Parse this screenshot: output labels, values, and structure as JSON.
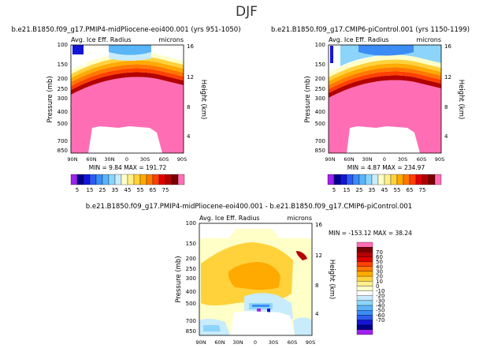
{
  "page_title": "DJF",
  "colors": {
    "pink_fill": "#ff6eb4",
    "scale_abs": [
      "#a020f0",
      "#00008b",
      "#1515d8",
      "#2a5cf0",
      "#3c8cf5",
      "#5ab4f8",
      "#8cd4fa",
      "#c8ecfc",
      "#ffffc8",
      "#fff08c",
      "#ffd23c",
      "#ffaa00",
      "#ff7800",
      "#ff4000",
      "#e00000",
      "#b40000",
      "#780000",
      "#ff6eb4"
    ],
    "scale_diff": [
      "#a020f0",
      "#00008b",
      "#1515d8",
      "#2a5cf0",
      "#3c8cf5",
      "#5ab4f8",
      "#8cd4fa",
      "#c8ecfc",
      "#ffffff",
      "#ffffc8",
      "#fff08c",
      "#ffd23c",
      "#ffaa00",
      "#ff7800",
      "#ff4000",
      "#e00000",
      "#b40000",
      "#780000",
      "#ff6eb4"
    ]
  },
  "chart_data": [
    {
      "type": "heatmap",
      "id": "mp",
      "title": "b.e21.B1850.f09_g17.PMIP4-midPliocene-eoi400.001 (yrs 951-1050)",
      "subtitle_left": "Avg. Ice Eff. Radius",
      "subtitle_right": "microns",
      "ylabel": "Pressure (mb)",
      "y2label": "Height (km)",
      "x_ticks": [
        "90N",
        "60N",
        "30N",
        "0",
        "30S",
        "60S",
        "90S"
      ],
      "y_ticks": [
        "100",
        "150",
        "200",
        "250",
        "300",
        "400",
        "500",
        "700",
        "850"
      ],
      "y2_ticks": [
        "16",
        "12",
        "8",
        "4"
      ],
      "stats_label": "MIN = 9.84 MAX = 191.72",
      "min": 9.84,
      "max": 191.72,
      "colorbar_labels": [
        "5",
        "15",
        "25",
        "35",
        "45",
        "55",
        "65",
        "75"
      ]
    },
    {
      "type": "heatmap",
      "id": "pi",
      "title": "b.e21.B1850.f09_g17.CMIP6-piControl.001 (yrs 1150-1199)",
      "subtitle_left": "Avg. Ice Eff. Radius",
      "subtitle_right": "microns",
      "ylabel": "Pressure (mb)",
      "y2label": "Height (km)",
      "x_ticks": [
        "90N",
        "60N",
        "30N",
        "0",
        "30S",
        "60S",
        "90S"
      ],
      "y_ticks": [
        "100",
        "150",
        "200",
        "250",
        "300",
        "400",
        "500",
        "700",
        "850"
      ],
      "y2_ticks": [
        "16",
        "12",
        "8",
        "4"
      ],
      "stats_label": "MIN = 4.87 MAX = 234.97",
      "min": 4.87,
      "max": 234.97,
      "colorbar_labels": [
        "5",
        "15",
        "25",
        "35",
        "45",
        "55",
        "65",
        "75"
      ]
    },
    {
      "type": "heatmap",
      "id": "diff",
      "title": "b.e21.B1850.f09_g17.PMIP4-midPliocene-eoi400.001 - b.e21.B1850.f09_g17.CMIP6-piControl.001",
      "subtitle_left": "Avg. Ice Eff. Radius",
      "subtitle_right": "microns",
      "ylabel": "Pressure (mb)",
      "y2label": "Height (km)",
      "x_ticks": [
        "90N",
        "60N",
        "30N",
        "0",
        "30S",
        "60S",
        "90S"
      ],
      "y_ticks": [
        "100",
        "150",
        "200",
        "250",
        "300",
        "400",
        "500",
        "700",
        "850"
      ],
      "y2_ticks": [
        "16",
        "12",
        "8",
        "4"
      ],
      "stats_label": "MIN = -153.12 MAX = 38.24",
      "min": -153.12,
      "max": 38.24,
      "colorbar_labels": [
        "70",
        "60",
        "50",
        "40",
        "30",
        "20",
        "10",
        "0",
        "-10",
        "-20",
        "-30",
        "-40",
        "-50",
        "-60",
        "-70"
      ]
    }
  ]
}
